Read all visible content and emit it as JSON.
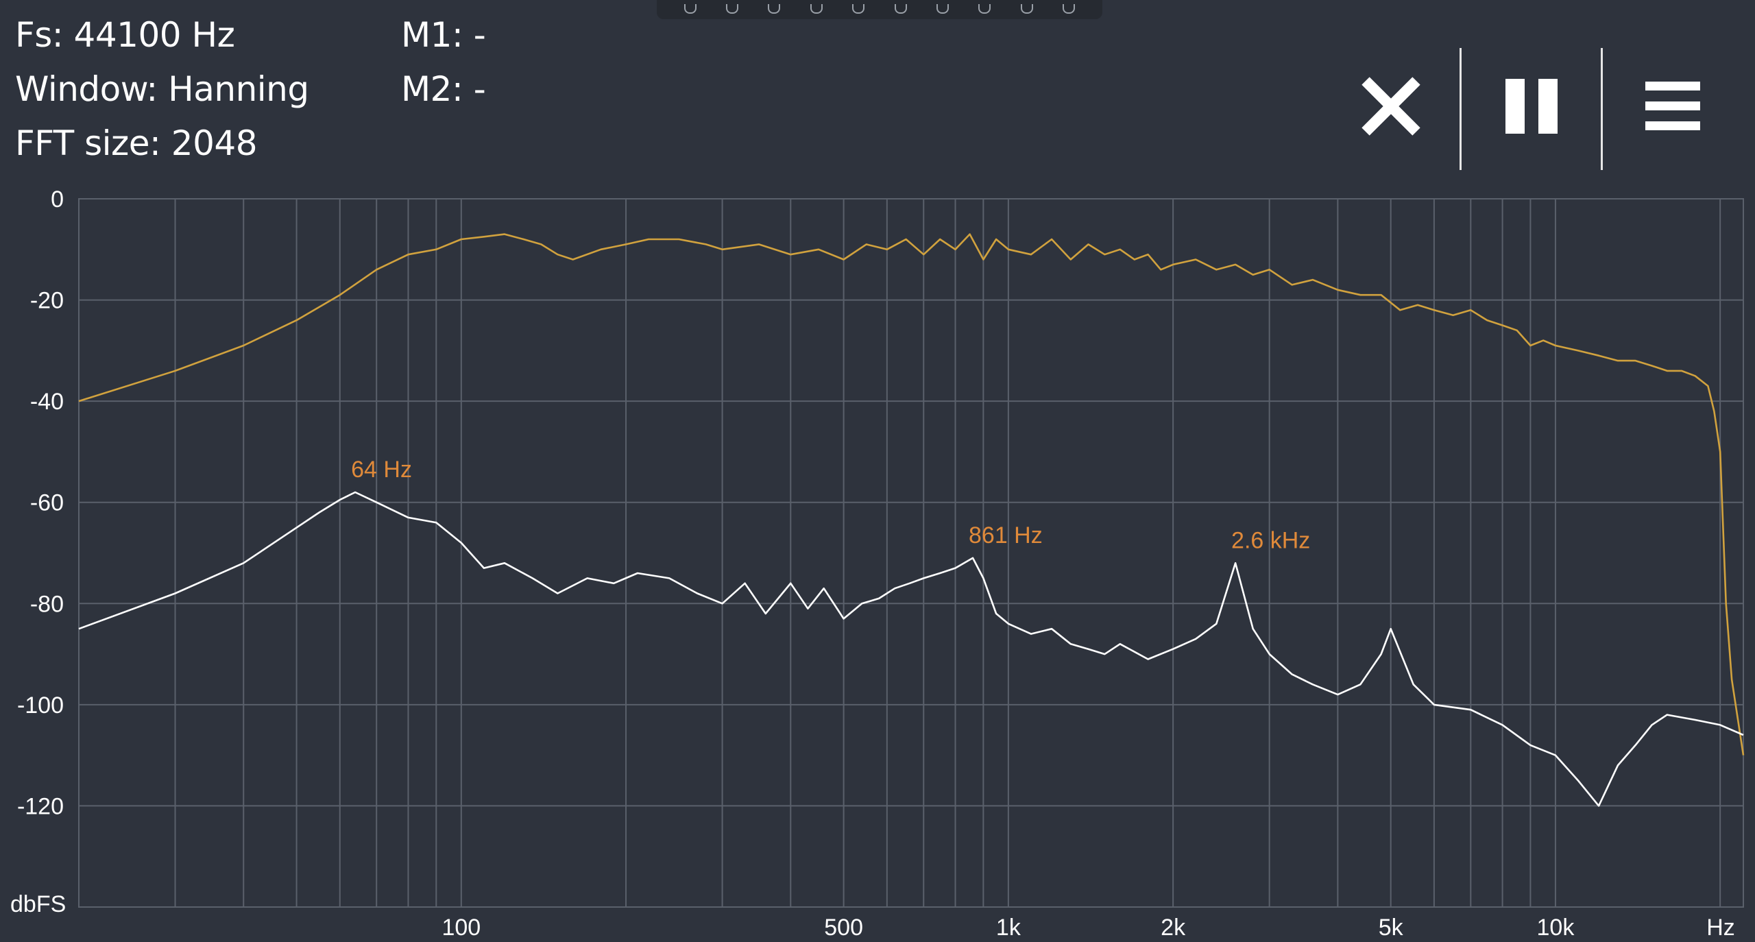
{
  "info": {
    "fs": "Fs: 44100 Hz",
    "window": "Window: Hanning",
    "fft_size": "FFT size: 2048",
    "m1": "M1: -",
    "m2": "M2: -"
  },
  "controls": {
    "close": "close-icon",
    "pause": "pause-icon",
    "menu": "menu-icon"
  },
  "colors": {
    "background": "#2e333d",
    "grid": "#5a606b",
    "peak_hold": "#d1a23e",
    "live": "#ffffff",
    "marker_label": "#e08a3a"
  },
  "chart_data": {
    "type": "line",
    "xscale": "log",
    "xlim": [
      20,
      22050
    ],
    "ylim": [
      -140,
      0
    ],
    "xlabel": "Hz",
    "ylabel": "dbFS",
    "xticks": [
      {
        "value": 100,
        "label": "100"
      },
      {
        "value": 500,
        "label": "500"
      },
      {
        "value": 1000,
        "label": "1k"
      },
      {
        "value": 2000,
        "label": "2k"
      },
      {
        "value": 5000,
        "label": "5k"
      },
      {
        "value": 10000,
        "label": "10k"
      }
    ],
    "yticks": [
      0,
      -20,
      -40,
      -60,
      -80,
      -100,
      -120
    ],
    "grid": true,
    "series": [
      {
        "color": "#d1a23e",
        "x": [
          20,
          30,
          40,
          50,
          60,
          70,
          80,
          90,
          100,
          110,
          120,
          130,
          140,
          150,
          160,
          180,
          200,
          220,
          250,
          280,
          300,
          350,
          400,
          450,
          500,
          550,
          600,
          650,
          700,
          750,
          800,
          850,
          900,
          950,
          1000,
          1100,
          1200,
          1300,
          1400,
          1500,
          1600,
          1700,
          1800,
          1900,
          2000,
          2200,
          2400,
          2600,
          2800,
          3000,
          3300,
          3600,
          4000,
          4400,
          4800,
          5200,
          5600,
          6000,
          6500,
          7000,
          7500,
          8000,
          8500,
          9000,
          9500,
          10000,
          11000,
          12000,
          13000,
          14000,
          15000,
          16000,
          17000,
          18000,
          19000,
          19500,
          20000,
          20500,
          21000,
          22050
        ],
        "y": [
          -40,
          -34,
          -29,
          -24,
          -19,
          -14,
          -11,
          -10,
          -8,
          -7.5,
          -7,
          -8,
          -9,
          -11,
          -12,
          -10,
          -9,
          -8,
          -8,
          -9,
          -10,
          -9,
          -11,
          -10,
          -12,
          -9,
          -10,
          -8,
          -11,
          -8,
          -10,
          -7,
          -12,
          -8,
          -10,
          -11,
          -8,
          -12,
          -9,
          -11,
          -10,
          -12,
          -11,
          -14,
          -13,
          -12,
          -14,
          -13,
          -15,
          -14,
          -17,
          -16,
          -18,
          -19,
          -19,
          -22,
          -21,
          -22,
          -23,
          -22,
          -24,
          -25,
          -26,
          -29,
          -28,
          -29,
          -30,
          -31,
          -32,
          -32,
          -33,
          -34,
          -34,
          -35,
          -37,
          -42,
          -50,
          -80,
          -95,
          -110
        ]
      },
      {
        "color": "#ffffff",
        "x": [
          20,
          30,
          40,
          50,
          55,
          60,
          64,
          70,
          80,
          90,
          100,
          110,
          120,
          135,
          150,
          170,
          190,
          210,
          240,
          270,
          300,
          330,
          360,
          400,
          430,
          460,
          500,
          540,
          580,
          620,
          660,
          700,
          750,
          800,
          861,
          900,
          950,
          1000,
          1100,
          1200,
          1300,
          1400,
          1500,
          1600,
          1800,
          2000,
          2200,
          2400,
          2600,
          2800,
          3000,
          3300,
          3600,
          4000,
          4400,
          4800,
          5000,
          5500,
          6000,
          7000,
          8000,
          9000,
          10000,
          11000,
          12000,
          13000,
          14000,
          15000,
          16000,
          18000,
          20000,
          22050
        ],
        "y": [
          -85,
          -78,
          -72,
          -65,
          -62,
          -59.5,
          -58,
          -60,
          -63,
          -64,
          -68,
          -73,
          -72,
          -75,
          -78,
          -75,
          -76,
          -74,
          -75,
          -78,
          -80,
          -76,
          -82,
          -76,
          -81,
          -77,
          -83,
          -80,
          -79,
          -77,
          -76,
          -75,
          -74,
          -73,
          -71,
          -75,
          -82,
          -84,
          -86,
          -85,
          -88,
          -89,
          -90,
          -88,
          -91,
          -89,
          -87,
          -84,
          -72,
          -85,
          -90,
          -94,
          -96,
          -98,
          -96,
          -90,
          -85,
          -96,
          -100,
          -101,
          -104,
          -108,
          -110,
          -115,
          -120,
          -112,
          -108,
          -104,
          -102,
          -103,
          -104,
          -106
        ]
      }
    ],
    "annotations": [
      {
        "x": 64,
        "y": -58,
        "label": "64 Hz"
      },
      {
        "x": 861,
        "y": -71,
        "label": "861 Hz"
      },
      {
        "x": 2600,
        "y": -72,
        "label": "2.6  kHz"
      }
    ]
  }
}
